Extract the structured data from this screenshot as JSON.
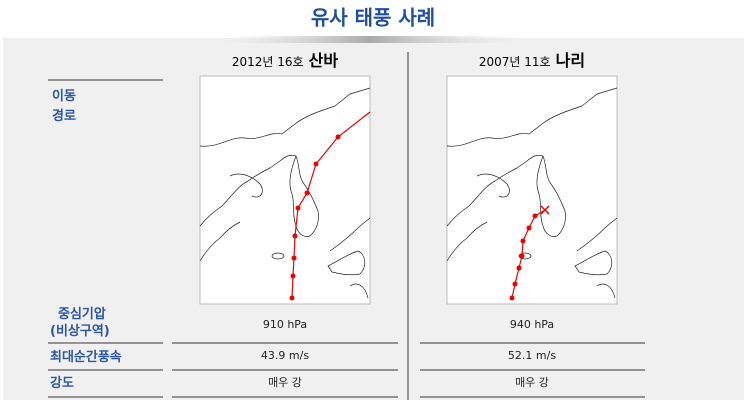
{
  "title": "유사 태풍 사례",
  "row_labels": [
    [
      "이동",
      "경로"
    ],
    [
      "중심기압",
      "(비상구역)"
    ],
    [
      "최대순간풍속"
    ],
    [
      "강도"
    ]
  ],
  "columns": [
    {
      "year_number": "2012년 16호",
      "name": "산바",
      "pressure": "910 hPa",
      "max_gust": "43.9 m/s",
      "intensity": "매우 강"
    },
    {
      "year_number": "2007년 11호",
      "name": "나리",
      "pressure": "940 hPa",
      "max_gust": "52.1 m/s",
      "intensity": "매우 강"
    }
  ]
}
